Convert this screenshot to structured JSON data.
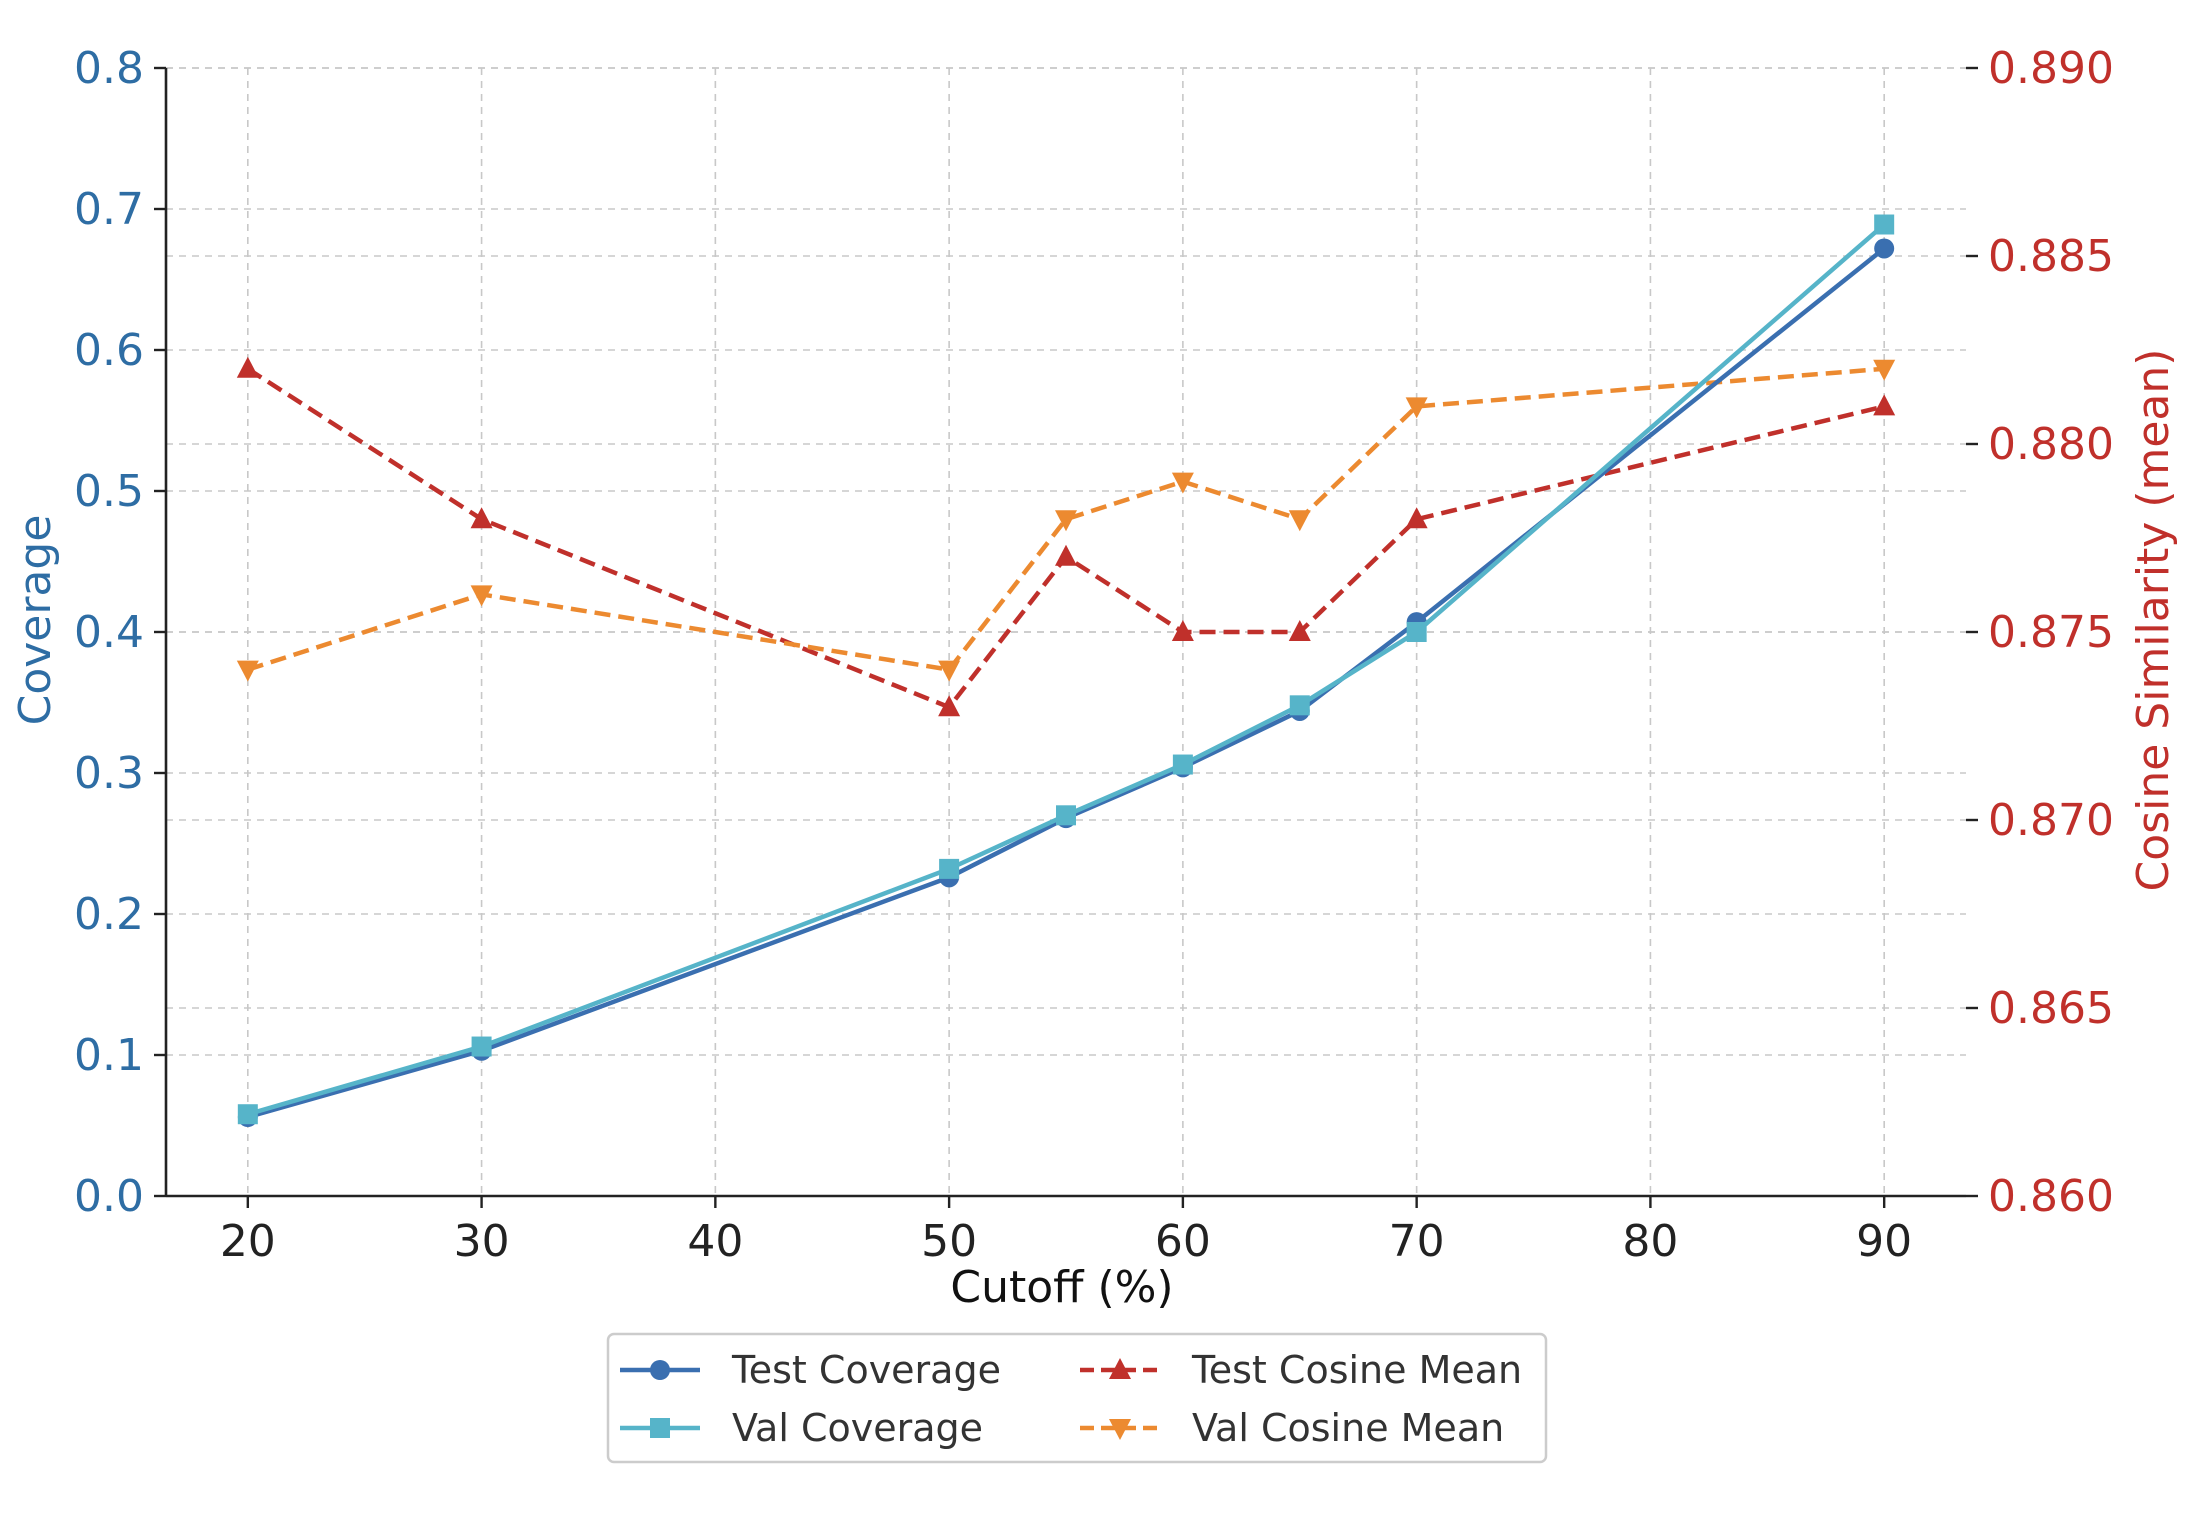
{
  "chart_data": {
    "type": "line",
    "x": [
      20,
      30,
      50,
      55,
      60,
      65,
      70,
      90
    ],
    "xlabel": "Cutoff (%)",
    "ylabel_left": "Coverage",
    "ylabel_right": "Cosine Similarity (mean)",
    "xlim": [
      16.5,
      93.5
    ],
    "ylim_left": [
      0.0,
      0.8
    ],
    "ylim_right": [
      0.86,
      0.89
    ],
    "xticks": [
      "20",
      "30",
      "40",
      "50",
      "60",
      "70",
      "80",
      "90"
    ],
    "yticks_left": [
      "0.0",
      "0.1",
      "0.2",
      "0.3",
      "0.4",
      "0.5",
      "0.6",
      "0.7",
      "0.8"
    ],
    "yticks_right": [
      "0.860",
      "0.865",
      "0.870",
      "0.875",
      "0.880",
      "0.885",
      "0.890"
    ],
    "grid": true,
    "legend_position": "bottom-center",
    "series": [
      {
        "name": "Test Coverage",
        "axis": "left",
        "color": "#3a6fb0",
        "marker": "circle",
        "dashed": false,
        "values": [
          0.056,
          0.103,
          0.226,
          0.268,
          0.304,
          0.344,
          0.407,
          0.672
        ]
      },
      {
        "name": "Val Coverage",
        "axis": "left",
        "color": "#56b4c9",
        "marker": "square",
        "dashed": false,
        "values": [
          0.058,
          0.106,
          0.232,
          0.27,
          0.306,
          0.348,
          0.4,
          0.689
        ]
      },
      {
        "name": "Test Cosine Mean",
        "axis": "right",
        "color": "#c0302b",
        "marker": "triangle-up",
        "dashed": true,
        "values": [
          0.882,
          0.878,
          0.873,
          0.877,
          0.875,
          0.875,
          0.878,
          0.881
        ]
      },
      {
        "name": "Val Cosine Mean",
        "axis": "right",
        "color": "#ec8a30",
        "marker": "triangle-down",
        "dashed": true,
        "values": [
          0.874,
          0.876,
          0.874,
          0.878,
          0.879,
          0.878,
          0.881,
          0.882
        ]
      }
    ]
  }
}
